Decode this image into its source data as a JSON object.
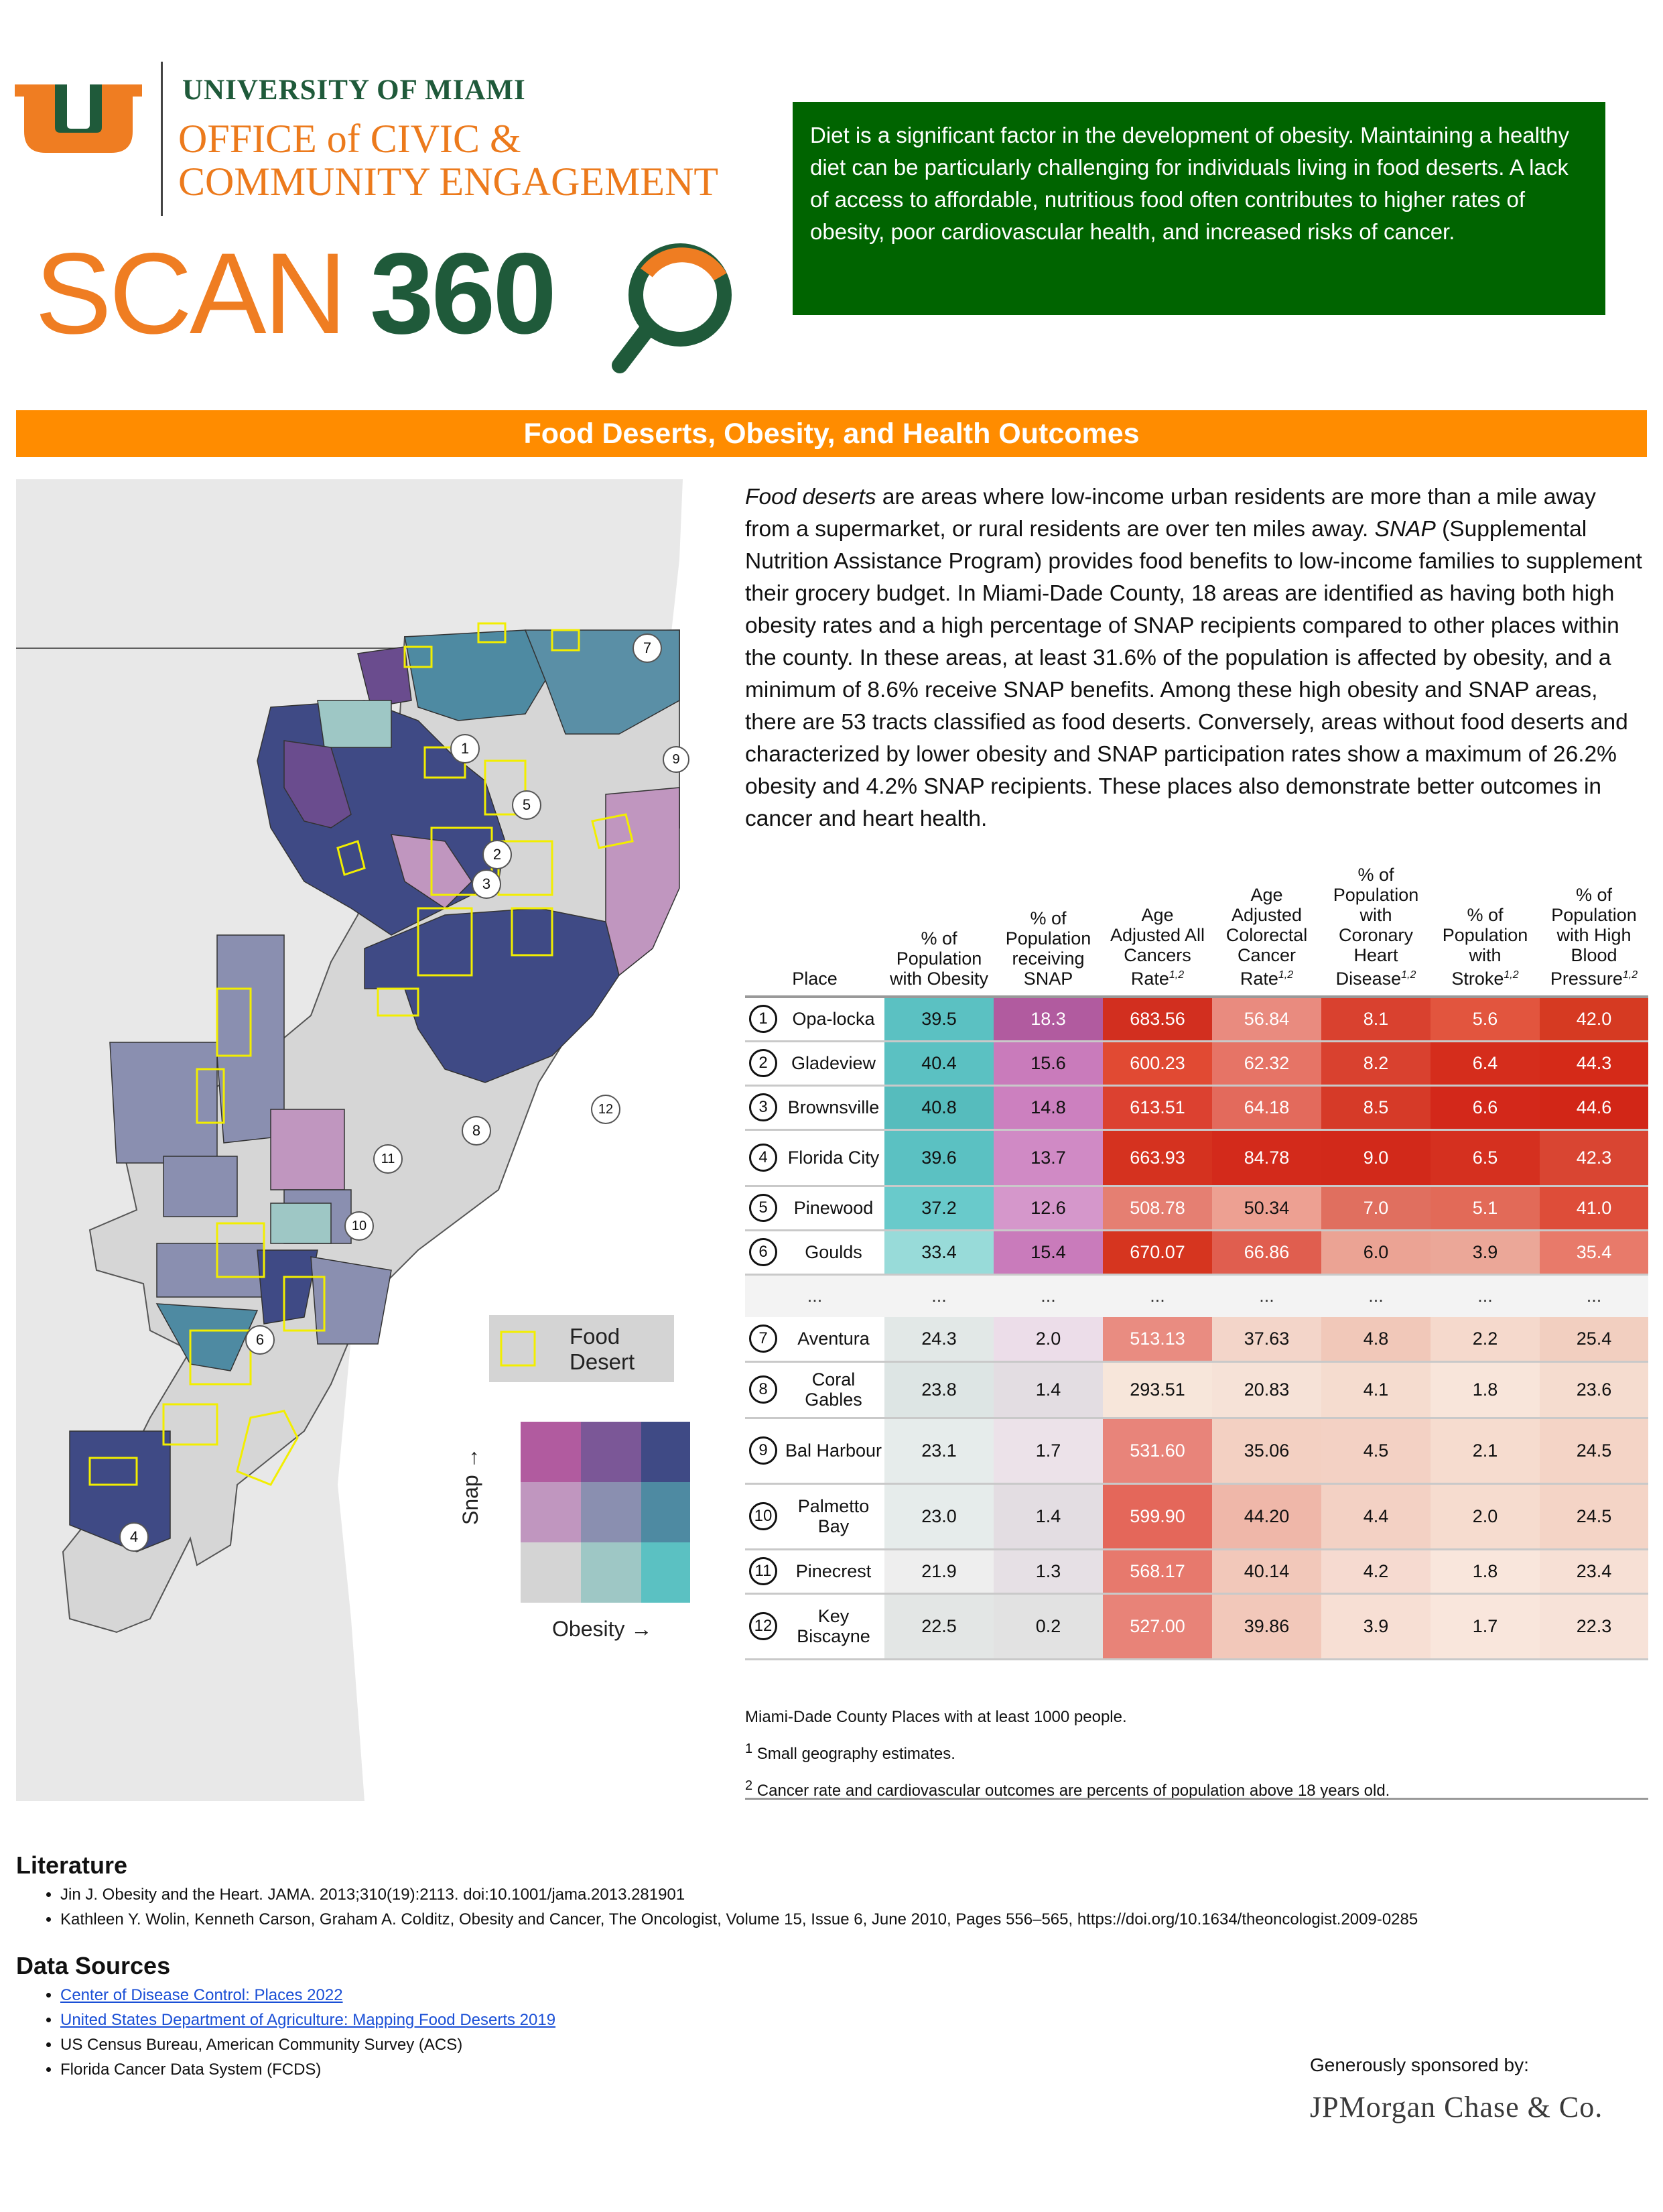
{
  "header": {
    "um_line1": "UNIVERSITY OF MIAMI",
    "um_line2": "OFFICE of CIVIC &",
    "um_line3": "COMMUNITY ENGAGEMENT",
    "scan_word": "SCAN",
    "scan_num": "360",
    "colors": {
      "orange": "#ef7d22",
      "green": "#1f5a3a"
    }
  },
  "intro": "Diet is a significant factor in the development of obesity. Maintaining a healthy diet can be particularly challenging for individuals living in food deserts. A lack of access to affordable, nutritious food often contributes to higher rates of obesity, poor cardiovascular health, and increased risks of cancer.",
  "banner": "Food Deserts, Obesity, and Health Outcomes",
  "description": {
    "t1": "Food deserts",
    "t2": " are areas where low-income urban residents are more than a mile away from a supermarket, or rural residents are over ten miles away. ",
    "t3": "SNAP",
    "t4": " (Supplemental Nutrition Assistance Program)  provides food benefits to low-income families to supplement their grocery budget. In Miami-Dade County, 18 areas are identified as having both high obesity rates and a high percentage of SNAP recipients compared to other places within the county. In these areas, at least 31.6% of the population is affected by obesity, and a minimum of 8.6% receive SNAP benefits. Among these high obesity and SNAP areas, there are 53 tracts classified as food deserts. Conversely, areas without food deserts and characterized by lower obesity and SNAP participation rates show a maximum of 26.2% obesity and 4.2% SNAP recipients. These places also demonstrate better outcomes in cancer and heart health."
  },
  "map": {
    "legend_food_desert": "Food Desert",
    "axis_snap": "Snap →",
    "axis_obesity": "Obesity →",
    "markers": [
      "1",
      "2",
      "3",
      "4",
      "5",
      "6",
      "7",
      "8",
      "9",
      "10",
      "11",
      "12"
    ]
  },
  "table": {
    "headers": {
      "place": "Place",
      "obesity": "% of Population with Obesity",
      "snap": "% of Population receiving SNAP",
      "cancer": "Age Adjusted All Cancers Rate",
      "colorectal": "Age Adjusted Colorectal Cancer Rate",
      "chd": "% of Population with Coronary Heart Disease",
      "stroke": "% of Population with Stroke",
      "bp": "% of Population with High Blood Pressure",
      "sup": "1,2"
    },
    "ellipsis": "...",
    "rows_top": [
      {
        "n": "1",
        "place": "Opa-locka",
        "obesity": "39.5",
        "snap": "18.3",
        "cancer": "683.56",
        "colorectal": "56.84",
        "chd": "8.1",
        "stroke": "5.6",
        "bp": "42.0",
        "colors": [
          "#5bc1c2",
          "#b15b9f",
          "#d22f1f",
          "#e98b7f",
          "#d9412f",
          "#e2553e",
          "#d63a22"
        ]
      },
      {
        "n": "2",
        "place": "Gladeview",
        "obesity": "40.4",
        "snap": "15.6",
        "cancer": "600.23",
        "colorectal": "62.32",
        "chd": "8.2",
        "stroke": "6.4",
        "bp": "44.3",
        "colors": [
          "#5bc1c2",
          "#c97bbb",
          "#e14a33",
          "#e67466",
          "#d9412f",
          "#d52d1c",
          "#d52a18"
        ]
      },
      {
        "n": "3",
        "place": "Brownsville",
        "obesity": "40.8",
        "snap": "14.8",
        "cancer": "613.51",
        "colorectal": "64.18",
        "chd": "8.5",
        "stroke": "6.6",
        "bp": "44.6",
        "colors": [
          "#56bcbd",
          "#cc80bf",
          "#dc4130",
          "#e36a5c",
          "#d63a28",
          "#d3281a",
          "#d22617"
        ]
      },
      {
        "n": "4",
        "place": "Florida City",
        "obesity": "39.6",
        "snap": "13.7",
        "cancer": "663.93",
        "colorectal": "84.78",
        "chd": "9.0",
        "stroke": "6.5",
        "bp": "42.3",
        "colors": [
          "#5bc1c2",
          "#d08ac5",
          "#d5321f",
          "#d32a1b",
          "#d2291a",
          "#d5301f",
          "#d94532"
        ]
      },
      {
        "n": "5",
        "place": "Pinewood",
        "obesity": "37.2",
        "snap": "12.6",
        "cancer": "508.78",
        "colorectal": "50.34",
        "chd": "7.0",
        "stroke": "5.1",
        "bp": "41.0",
        "colors": [
          "#69cacb",
          "#d597cb",
          "#e57f72",
          "#eda092",
          "#e06f5f",
          "#e26a58",
          "#de4d39"
        ]
      },
      {
        "n": "6",
        "place": "Goulds",
        "obesity": "33.4",
        "snap": "15.4",
        "cancer": "670.07",
        "colorectal": "66.86",
        "chd": "6.0",
        "stroke": "3.9",
        "bp": "35.4",
        "colors": [
          "#98dbd9",
          "#c97bbb",
          "#d6351f",
          "#e05e4f",
          "#eba394",
          "#eba798",
          "#e87a6a"
        ]
      }
    ],
    "rows_bottom": [
      {
        "n": "7",
        "place": "Aventura",
        "obesity": "24.3",
        "snap": "2.0",
        "cancer": "513.13",
        "colorectal": "37.63",
        "chd": "4.8",
        "stroke": "2.2",
        "bp": "25.4",
        "colors": [
          "#e2e8e7",
          "#ecdde9",
          "#e98c81",
          "#f3d5c9",
          "#f1c8b9",
          "#f5d9cc",
          "#f2cfc0"
        ]
      },
      {
        "n": "8",
        "place": "Coral Gables",
        "obesity": "23.8",
        "snap": "1.4",
        "cancer": "293.51",
        "colorectal": "20.83",
        "chd": "4.1",
        "stroke": "1.8",
        "bp": "23.6",
        "colors": [
          "#dde5e4",
          "#e3dde2",
          "#f7e6da",
          "#f6e2d7",
          "#f5dccf",
          "#f8e5da",
          "#f5dccf"
        ]
      },
      {
        "n": "9",
        "place": "Bal Harbour",
        "obesity": "23.1",
        "snap": "1.7",
        "cancer": "531.60",
        "colorectal": "35.06",
        "chd": "4.5",
        "stroke": "2.1",
        "bp": "24.5",
        "colors": [
          "#e6eceb",
          "#ece2e9",
          "#e8847a",
          "#f3d0c2",
          "#f3d1c4",
          "#f6dccf",
          "#f4d4c6"
        ]
      },
      {
        "n": "10",
        "place": "Palmetto Bay",
        "obesity": "23.0",
        "snap": "1.4",
        "cancer": "599.90",
        "colorectal": "44.20",
        "chd": "4.4",
        "stroke": "2.0",
        "bp": "24.5",
        "colors": [
          "#e6eceb",
          "#e3dde2",
          "#e4675a",
          "#efb7a9",
          "#f3d1c4",
          "#f6dccf",
          "#f4d4c6"
        ]
      },
      {
        "n": "11",
        "place": "Pinecrest",
        "obesity": "21.9",
        "snap": "1.3",
        "cancer": "568.17",
        "colorectal": "40.14",
        "chd": "4.2",
        "stroke": "1.8",
        "bp": "23.4",
        "colors": [
          "#eeeeee",
          "#e6e0e5",
          "#e7796d",
          "#f2c8ba",
          "#f6dad0",
          "#f9e6dc",
          "#f7e0d5"
        ]
      },
      {
        "n": "12",
        "place": "Key Biscayne",
        "obesity": "22.5",
        "snap": "0.2",
        "cancer": "527.00",
        "colorectal": "39.86",
        "chd": "3.9",
        "stroke": "1.7",
        "bp": "22.3",
        "colors": [
          "#e3e6e5",
          "#e2e2e2",
          "#e88378",
          "#f2c8ba",
          "#f7dfd4",
          "#f9e6dc",
          "#f7e2d8"
        ]
      }
    ]
  },
  "notes": {
    "n1": "Miami-Dade County Places with at least 1000 people.",
    "n2": "Small geography estimates.",
    "n3": "Cancer rate and cardiovascular outcomes are percents of population above 18 years old.",
    "n2_sup": "1",
    "n3_sup": "2"
  },
  "literature": {
    "title": "Literature",
    "items": [
      "Jin J. Obesity and the Heart. JAMA. 2013;310(19):2113. doi:10.1001/jama.2013.281901",
      "Kathleen Y. Wolin, Kenneth Carson, Graham A. Colditz, Obesity and Cancer, The Oncologist, Volume 15, Issue 6, June 2010, Pages 556–565, https://doi.org/10.1634/theoncologist.2009-0285"
    ]
  },
  "sources": {
    "title": "Data Sources",
    "links": [
      "Center of Disease Control: Places 2022",
      "United States Department of Agriculture: Mapping Food Deserts 2019"
    ],
    "items": [
      "US Census Bureau, American Community Survey (ACS)",
      "Florida Cancer Data System (FCDS)"
    ]
  },
  "sponsor": {
    "label": "Generously sponsored by:",
    "name": "JPMorgan Chase & Co."
  }
}
